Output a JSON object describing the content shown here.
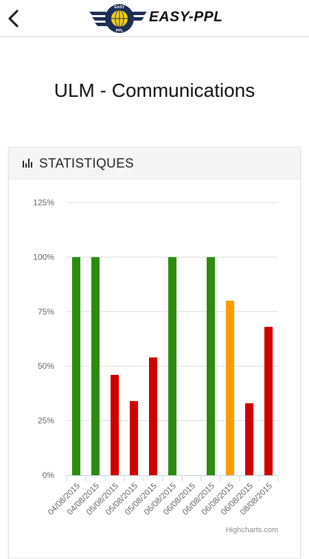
{
  "header": {
    "back_icon": "chevron-left-icon",
    "logo_text": "EASY-PPL",
    "logo_badge_top": "EASY",
    "logo_badge_bottom": "PPL"
  },
  "page": {
    "title": "ULM - Communications"
  },
  "panel": {
    "title": "STATISTIQUES",
    "icon": "bar-chart-icon"
  },
  "colors": {
    "green": "#2b8c0e",
    "red": "#d40000",
    "orange": "#ff9900",
    "grid": "#dcdcdc",
    "axis": "#c0d0e0"
  },
  "chart_data": {
    "type": "bar",
    "categories": [
      "04/08/2015",
      "04/08/2015",
      "05/08/2015",
      "05/08/2015",
      "05/08/2015",
      "06/08/2015",
      "06/08/2015",
      "06/08/2015",
      "06/08/2015",
      "06/08/2015",
      "08/08/2015"
    ],
    "values": [
      100,
      100,
      46,
      34,
      54,
      100,
      0,
      100,
      80,
      33,
      68
    ],
    "bar_colors": [
      "green",
      "green",
      "red",
      "red",
      "red",
      "green",
      "green",
      "green",
      "orange",
      "red",
      "red"
    ],
    "ylim": [
      0,
      125
    ],
    "yticks": [
      0,
      25,
      50,
      75,
      100,
      125
    ],
    "ytick_suffix": "%",
    "grid": true,
    "credits": "Highcharts.com"
  }
}
